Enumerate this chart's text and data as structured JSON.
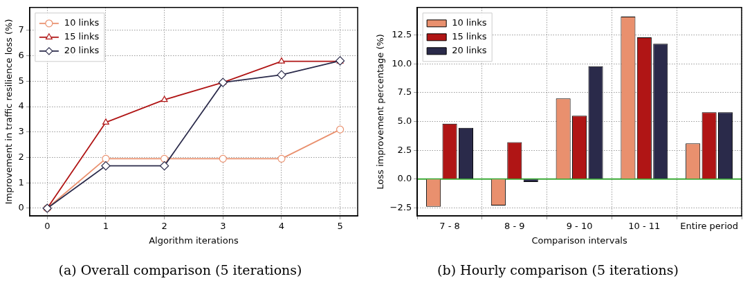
{
  "chart_data": [
    {
      "type": "line",
      "title": "(a) Overall comparison (5 iterations)",
      "xlabel": "Algorithm iterations",
      "ylabel": "Improvement in traffic resilience loss (%)",
      "x": [
        0,
        1,
        2,
        3,
        4,
        5
      ],
      "xlim": [
        -0.3,
        5.3
      ],
      "xticks": [
        0,
        1,
        2,
        3,
        4,
        5
      ],
      "ylim": [
        -0.3,
        7.9
      ],
      "yticks": [
        0,
        1,
        2,
        3,
        4,
        5,
        6,
        7
      ],
      "grid": true,
      "legend": "top left",
      "line_style": "solid",
      "series": [
        {
          "name": "10 links",
          "color": "#e9906e",
          "marker": "circle",
          "values": [
            0,
            1.95,
            1.95,
            1.95,
            1.95,
            3.1
          ]
        },
        {
          "name": "15 links",
          "color": "#b01515",
          "marker": "triangle",
          "values": [
            0,
            3.38,
            4.27,
            4.95,
            5.78,
            5.78
          ]
        },
        {
          "name": "20 links",
          "color": "#2a2a4a",
          "marker": "diamond",
          "values": [
            0,
            1.67,
            1.67,
            4.95,
            5.25,
            5.8
          ]
        }
      ]
    },
    {
      "type": "bar",
      "title": "(b) Hourly comparison (5 iterations)",
      "xlabel": "Comparison intervals",
      "ylabel": "Loss improvement percentage (%)",
      "categories": [
        "7 - 8",
        "8 - 9",
        "9 - 10",
        "10 - 11",
        "Entire period"
      ],
      "ylim": [
        -3.2,
        14.9
      ],
      "yticks": [
        {
          "value": -2.5,
          "label": "−2.5"
        },
        {
          "value": 0,
          "label": "0.0"
        },
        {
          "value": 2.5,
          "label": "2.5"
        },
        {
          "value": 5,
          "label": "5.0"
        },
        {
          "value": 7.5,
          "label": "7.5"
        },
        {
          "value": 10,
          "label": "10.0"
        },
        {
          "value": 12.5,
          "label": "12.5"
        }
      ],
      "grid": true,
      "legend": "top left",
      "ref_lines": [
        {
          "axis": "y",
          "value": 0,
          "color": "#3aaa35"
        }
      ],
      "series": [
        {
          "name": "10 links",
          "color": "#e9906e",
          "values": [
            -2.4,
            -2.3,
            7.0,
            14.1,
            3.1
          ]
        },
        {
          "name": "15 links",
          "color": "#b01515",
          "values": [
            4.8,
            3.2,
            5.5,
            12.3,
            5.8
          ]
        },
        {
          "name": "20 links",
          "color": "#2a2a4a",
          "values": [
            4.45,
            -0.25,
            9.8,
            11.75,
            5.8
          ]
        }
      ]
    }
  ]
}
